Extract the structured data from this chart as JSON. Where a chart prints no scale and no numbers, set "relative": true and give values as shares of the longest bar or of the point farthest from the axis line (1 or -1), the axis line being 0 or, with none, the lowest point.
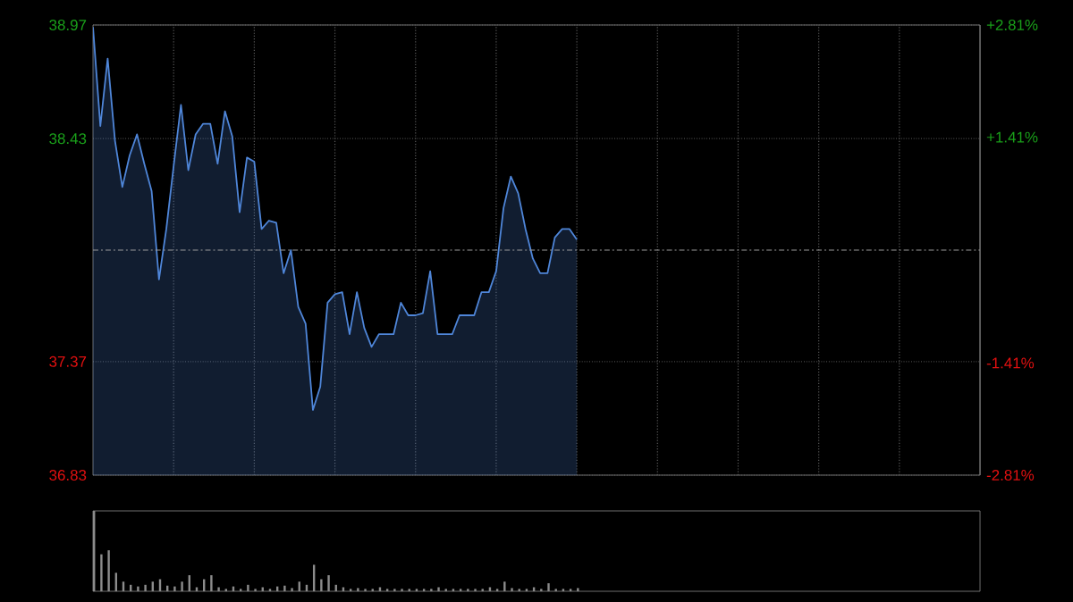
{
  "chart_data": [
    {
      "type": "area",
      "categories": [
        null,
        null,
        null,
        null,
        null,
        null,
        null,
        null,
        null,
        null,
        null,
        null,
        null,
        null,
        null,
        null,
        null,
        null,
        null,
        null,
        null,
        null,
        null,
        null,
        null,
        null,
        null,
        null,
        null,
        null,
        null,
        null,
        null,
        null,
        null,
        null,
        null,
        null,
        null,
        null,
        null,
        null,
        null,
        null,
        null,
        null,
        null,
        null,
        null,
        null,
        null,
        null,
        null,
        null,
        null,
        null,
        null,
        null,
        null,
        null,
        null,
        null,
        null,
        null,
        null,
        null,
        null,
        null,
        null,
        null,
        null,
        null,
        null,
        null,
        null,
        null,
        null,
        null,
        null,
        null,
        null,
        null,
        null,
        null,
        null,
        null,
        null,
        null,
        null,
        null,
        null,
        null,
        null,
        null,
        null,
        null,
        null,
        null,
        null,
        null,
        null,
        null,
        null,
        null,
        null,
        null,
        null,
        null,
        null,
        null,
        null,
        null,
        null,
        null,
        null,
        null,
        null,
        null,
        null,
        null,
        null,
        null
      ],
      "ylim": [
        36.83,
        38.97
      ],
      "yticks": [
        {
          "value": 36.83,
          "label": "36.83"
        },
        {
          "value": 37.37,
          "label": "37.37"
        },
        {
          "value": 38.43,
          "label": "38.43"
        },
        {
          "value": 38.97,
          "label": "38.97"
        }
      ],
      "y2lim": [
        -2.81,
        2.81
      ],
      "y2ticks": [
        {
          "value": -2.81,
          "label": "-2.81%"
        },
        {
          "value": -1.41,
          "label": "-1.41%"
        },
        {
          "value": 1.41,
          "label": "+1.41%"
        },
        {
          "value": 2.81,
          "label": "+2.81%"
        }
      ],
      "grid": true,
      "ref_lines": [
        {
          "axis": "y",
          "value": 37.9,
          "line_style": "dashed",
          "color": "#9a9a9a"
        }
      ],
      "series": [
        {
          "color": "#4f86d9",
          "values": [
            38.96,
            38.49,
            38.81,
            38.42,
            38.2,
            38.35,
            38.45,
            38.31,
            38.18,
            37.76,
            38.0,
            38.3,
            38.59,
            38.28,
            38.45,
            38.5,
            38.5,
            38.31,
            38.56,
            38.44,
            38.08,
            38.34,
            38.32,
            38.0,
            38.04,
            38.03,
            37.79,
            37.9,
            37.63,
            37.55,
            37.14,
            37.25,
            37.65,
            37.69,
            37.7,
            37.5,
            37.7,
            37.53,
            37.44,
            37.5,
            37.5,
            37.5,
            37.65,
            37.59,
            37.59,
            37.6,
            37.8,
            37.5,
            37.5,
            37.5,
            37.59,
            37.59,
            37.59,
            37.7,
            37.7,
            37.8,
            38.1,
            38.25,
            38.17,
            38.0,
            37.86,
            37.79,
            37.79,
            37.96,
            38.0,
            38.0,
            37.95,
            null,
            null,
            null,
            null,
            null,
            null,
            null,
            null,
            null,
            null,
            null,
            null,
            null,
            null,
            null,
            null,
            null,
            null,
            null,
            null,
            null,
            null,
            null,
            null,
            null,
            null,
            null,
            null,
            null,
            null,
            null,
            null,
            null,
            null,
            null,
            null,
            null,
            null,
            null,
            null,
            null,
            null,
            null,
            null,
            null,
            null,
            null,
            null,
            null,
            null,
            null,
            null,
            null,
            null,
            null
          ]
        }
      ]
    },
    {
      "type": "bar",
      "relative": true,
      "color": "#8c8c8c",
      "categories": [
        null,
        null,
        null,
        null,
        null,
        null,
        null,
        null,
        null,
        null,
        null,
        null,
        null,
        null,
        null,
        null,
        null,
        null,
        null,
        null,
        null,
        null,
        null,
        null,
        null,
        null,
        null,
        null,
        null,
        null,
        null,
        null,
        null,
        null,
        null,
        null,
        null,
        null,
        null,
        null,
        null,
        null,
        null,
        null,
        null,
        null,
        null,
        null,
        null,
        null,
        null,
        null,
        null,
        null,
        null,
        null,
        null,
        null,
        null,
        null,
        null,
        null,
        null,
        null,
        null,
        null,
        null,
        null,
        null,
        null,
        null,
        null,
        null,
        null,
        null,
        null,
        null,
        null,
        null,
        null,
        null,
        null,
        null,
        null,
        null,
        null,
        null,
        null,
        null,
        null,
        null,
        null,
        null,
        null,
        null,
        null,
        null,
        null,
        null,
        null,
        null,
        null,
        null,
        null,
        null,
        null,
        null,
        null,
        null,
        null,
        null,
        null,
        null,
        null,
        null,
        null,
        null,
        null,
        null,
        null,
        null,
        null
      ],
      "values": [
        1.0,
        0.46,
        0.51,
        0.23,
        0.12,
        0.08,
        0.06,
        0.08,
        0.12,
        0.15,
        0.07,
        0.06,
        0.12,
        0.2,
        0.05,
        0.15,
        0.2,
        0.05,
        0.03,
        0.06,
        0.03,
        0.08,
        0.03,
        0.05,
        0.03,
        0.06,
        0.07,
        0.04,
        0.12,
        0.08,
        0.33,
        0.15,
        0.2,
        0.08,
        0.05,
        0.03,
        0.04,
        0.03,
        0.03,
        0.05,
        0.03,
        0.03,
        0.03,
        0.03,
        0.03,
        0.03,
        0.03,
        0.05,
        0.03,
        0.03,
        0.03,
        0.03,
        0.03,
        0.03,
        0.05,
        0.03,
        0.12,
        0.04,
        0.03,
        0.03,
        0.05,
        0.03,
        0.1,
        0.03,
        0.03,
        0.03,
        0.04,
        null,
        null,
        null,
        null,
        null,
        null,
        null,
        null,
        null,
        null,
        null,
        null,
        null,
        null,
        null,
        null,
        null,
        null,
        null,
        null,
        null,
        null,
        null,
        null,
        null,
        null,
        null,
        null,
        null,
        null,
        null,
        null,
        null,
        null,
        null,
        null,
        null,
        null,
        null,
        null,
        null,
        null,
        null,
        null,
        null,
        null,
        null,
        null,
        null,
        null,
        null,
        null,
        null,
        null,
        null
      ]
    }
  ]
}
